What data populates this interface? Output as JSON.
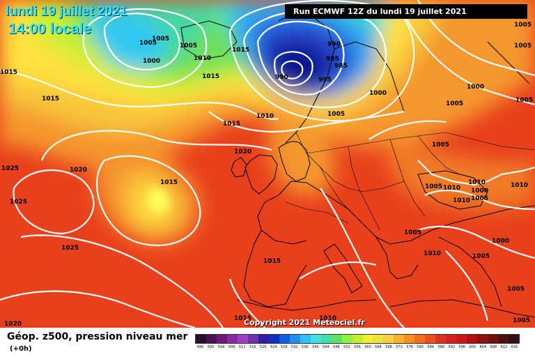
{
  "header": {
    "date": "lundi 19 juillet 2021",
    "time": "14:00 locale",
    "run": "Run ECMWF 12Z du lundi 19 juillet 2021"
  },
  "copyright": "Copyright 2021 Meteociel.fr",
  "footer": {
    "title": "Géop. z500, pression niveau mer",
    "subtitle": "(+0h)"
  },
  "legend": {
    "values": [
      "496",
      "500",
      "504",
      "508",
      "512",
      "516",
      "520",
      "524",
      "528",
      "532",
      "536",
      "540",
      "544",
      "548",
      "552",
      "556",
      "560",
      "564",
      "568",
      "572",
      "576",
      "580",
      "584",
      "588",
      "592",
      "596",
      "600",
      "604",
      "608",
      "612",
      "616"
    ],
    "colors": [
      "#2a0a2e",
      "#4a1050",
      "#6a1a7a",
      "#8a2aa0",
      "#a040c0",
      "#7030b0",
      "#3020a0",
      "#1030c0",
      "#1060e0",
      "#2090f0",
      "#30c0f0",
      "#40e0e0",
      "#40e0a0",
      "#60e060",
      "#90f040",
      "#c0f030",
      "#f0f030",
      "#f0e040",
      "#f8d040",
      "#f8b030",
      "#f89020",
      "#f07020",
      "#e85020",
      "#e03020",
      "#d82020",
      "#c81818",
      "#b01010",
      "#901010",
      "#701010",
      "#501010",
      "#301010"
    ]
  },
  "map": {
    "colors": {
      "red": "#f0461e",
      "orange": "#f5962d",
      "yellow": "#ffe141",
      "green": "#46e150",
      "cyan": "#32c8f0",
      "blue": "#2846d2",
      "navy": "#0a148c"
    },
    "pressure_labels": [
      {
        "text": "1005",
        "icon": "isobar-label"
      },
      {
        "text": "1005",
        "icon": "isobar-label"
      },
      {
        "text": "1000",
        "icon": "isobar-label"
      },
      {
        "text": "1010",
        "icon": "isobar-label"
      },
      {
        "text": "1015",
        "icon": "isobar-label"
      },
      {
        "text": "1015",
        "icon": "isobar-label"
      },
      {
        "text": "1005",
        "icon": "isobar-label"
      },
      {
        "text": "1015",
        "icon": "isobar-label"
      },
      {
        "text": "990",
        "icon": "isobar-label"
      },
      {
        "text": "985",
        "icon": "isobar-label"
      },
      {
        "text": "985",
        "icon": "isobar-label"
      },
      {
        "text": "990",
        "icon": "isobar-label"
      },
      {
        "text": "995",
        "icon": "isobar-label"
      },
      {
        "text": "1000",
        "icon": "isobar-label"
      },
      {
        "text": "1005",
        "icon": "isobar-label"
      },
      {
        "text": "1010",
        "icon": "isobar-label"
      },
      {
        "text": "1005",
        "icon": "isobar-label"
      },
      {
        "text": "1005",
        "icon": "isobar-label"
      },
      {
        "text": "1000",
        "icon": "isobar-label"
      },
      {
        "text": "1005",
        "icon": "isobar-label"
      },
      {
        "text": "1005",
        "icon": "isobar-label"
      },
      {
        "text": "1000",
        "icon": "isobar-label"
      },
      {
        "text": "1015",
        "icon": "isobar-label"
      },
      {
        "text": "1015",
        "icon": "isobar-label"
      },
      {
        "text": "1020",
        "icon": "isobar-label"
      },
      {
        "text": "1025",
        "icon": "isobar-label"
      },
      {
        "text": "1020",
        "icon": "isobar-label"
      },
      {
        "text": "1025",
        "icon": "isobar-label"
      },
      {
        "text": "1015",
        "icon": "isobar-label"
      },
      {
        "text": "1025",
        "icon": "isobar-label"
      },
      {
        "text": "1015",
        "icon": "isobar-label"
      },
      {
        "text": "1005",
        "icon": "isobar-label"
      },
      {
        "text": "1010",
        "icon": "isobar-label"
      },
      {
        "text": "1010",
        "icon": "isobar-label"
      },
      {
        "text": "1010",
        "icon": "isobar-label"
      },
      {
        "text": "1010",
        "icon": "isobar-label"
      },
      {
        "text": "1005",
        "icon": "isobar-label"
      },
      {
        "text": "1005",
        "icon": "isobar-label"
      },
      {
        "text": "1000",
        "icon": "isobar-label"
      },
      {
        "text": "1005",
        "icon": "isobar-label"
      },
      {
        "text": "1010",
        "icon": "isobar-label"
      },
      {
        "text": "1005",
        "icon": "isobar-label"
      },
      {
        "text": "1005",
        "icon": "isobar-label"
      },
      {
        "text": "1020",
        "icon": "isobar-label"
      },
      {
        "text": "1015",
        "icon": "isobar-label"
      },
      {
        "text": "1010",
        "icon": "isobar-label"
      },
      {
        "text": "1005",
        "icon": "isobar-label"
      }
    ]
  }
}
